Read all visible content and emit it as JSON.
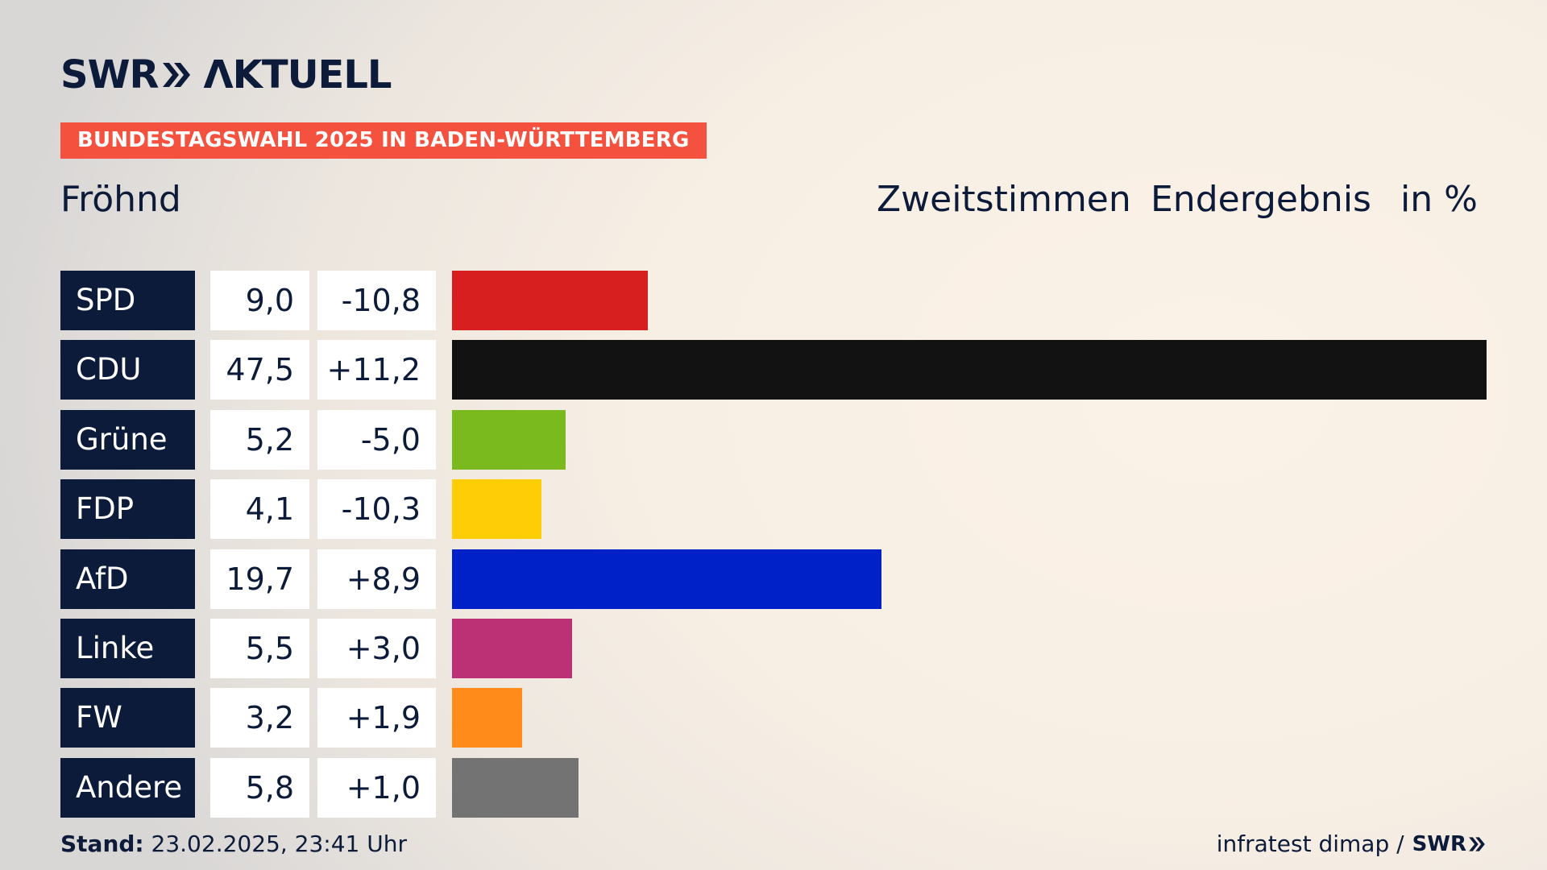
{
  "header": {
    "logo_text_left": "SWR",
    "logo_text_right": "ΛKTUELL",
    "banner": "BUNDESTAGSWAHL 2025 IN BADEN-WÜRTTEMBERG",
    "location": "Fröhnd",
    "col_vote": "Zweitstimmen",
    "col_result": "Endergebnis",
    "col_unit": "in %"
  },
  "chart_data": {
    "type": "bar",
    "categories": [
      "SPD",
      "CDU",
      "Grüne",
      "FDP",
      "AfD",
      "Linke",
      "FW",
      "Andere"
    ],
    "values": [
      9.0,
      47.5,
      5.2,
      4.1,
      19.7,
      5.5,
      3.2,
      5.8
    ],
    "value_labels": [
      "9,0",
      "47,5",
      "5,2",
      "4,1",
      "19,7",
      "5,5",
      "3,2",
      "5,8"
    ],
    "change_labels": [
      "-10,8",
      "+11,2",
      "-5,0",
      "-10,3",
      "+8,9",
      "+3,0",
      "+1,9",
      "+1,0"
    ],
    "changes": [
      -10.8,
      11.2,
      -5.0,
      -10.3,
      8.9,
      3.0,
      1.9,
      1.0
    ],
    "colors": [
      "#d71f1f",
      "#121212",
      "#7aba1e",
      "#ffcd05",
      "#0021c8",
      "#bc3175",
      "#ff8b1a",
      "#737373"
    ],
    "orientation": "horizontal",
    "xlim": [
      0,
      47.5
    ]
  },
  "footer": {
    "stand_label": "Stand:",
    "stand_value": "23.02.2025, 23:41 Uhr",
    "source": "infratest dimap /",
    "source_logo": "SWR"
  }
}
